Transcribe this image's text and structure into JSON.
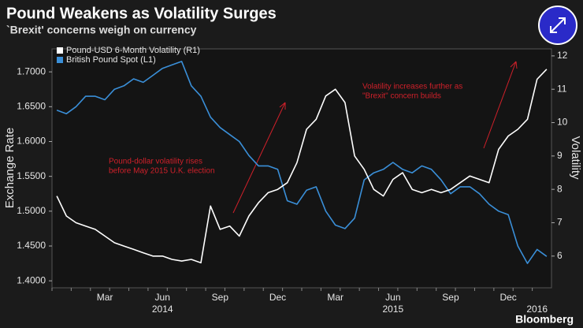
{
  "chart_data": {
    "type": "line",
    "title": "Pound Weakens as Volatility Surges",
    "subtitle": "`Brexit' concerns weigh on currency",
    "ylabel": "Exchange Rate",
    "y2label": "Volatility",
    "source": "Bloomberg",
    "categories": [
      null,
      null,
      null,
      null,
      null,
      "Mar",
      null,
      null,
      null,
      null,
      null,
      "Jun",
      null,
      null,
      null,
      null,
      null,
      "Sep",
      null,
      null,
      null,
      null,
      null,
      "Dec",
      null,
      null,
      null,
      null,
      null,
      "Mar",
      null,
      null,
      null,
      null,
      null,
      "Jun",
      null,
      null,
      null,
      null,
      null,
      "Sep",
      null,
      null,
      null,
      null,
      null,
      "Dec",
      null,
      null,
      null,
      null
    ],
    "x_group_labels": [
      null,
      null,
      null,
      null,
      null,
      null,
      null,
      null,
      null,
      null,
      null,
      "2014",
      null,
      null,
      null,
      null,
      null,
      null,
      null,
      null,
      null,
      null,
      null,
      null,
      null,
      null,
      null,
      null,
      null,
      null,
      null,
      null,
      null,
      null,
      null,
      "2015",
      null,
      null,
      null,
      null,
      null,
      null,
      null,
      null,
      null,
      null,
      null,
      null,
      null,
      null,
      "2016",
      null
    ],
    "series": [
      {
        "name": "Pound-USD 6-Month Volatility (R1)",
        "color": "#ffffff",
        "axis": "y2",
        "values": [
          7.8,
          7.2,
          7.0,
          6.9,
          6.8,
          6.6,
          6.4,
          6.3,
          6.2,
          6.1,
          6.0,
          6.0,
          5.9,
          5.85,
          5.9,
          5.8,
          7.5,
          6.8,
          6.9,
          6.6,
          7.2,
          7.6,
          7.9,
          8.0,
          8.2,
          8.8,
          9.8,
          10.1,
          10.8,
          11.0,
          10.6,
          9.0,
          8.6,
          8.0,
          7.8,
          8.3,
          8.5,
          8.0,
          7.9,
          8.0,
          7.9,
          8.0,
          8.2,
          8.4,
          8.3,
          8.2,
          9.2,
          9.6,
          9.8,
          10.1,
          11.3,
          11.6
        ]
      },
      {
        "name": "British Pound Spot (L1)",
        "color": "#3a8fd8",
        "values": [
          1.645,
          1.64,
          1.65,
          1.665,
          1.665,
          1.66,
          1.675,
          1.68,
          1.69,
          1.685,
          1.695,
          1.705,
          1.71,
          1.715,
          1.68,
          1.665,
          1.635,
          1.62,
          1.61,
          1.6,
          1.58,
          1.565,
          1.565,
          1.56,
          1.515,
          1.51,
          1.53,
          1.535,
          1.5,
          1.48,
          1.475,
          1.49,
          1.545,
          1.555,
          1.56,
          1.57,
          1.56,
          1.555,
          1.565,
          1.56,
          1.545,
          1.525,
          1.535,
          1.535,
          1.525,
          1.51,
          1.5,
          1.495,
          1.45,
          1.425,
          1.445,
          1.435
        ]
      }
    ],
    "ylim": [
      1.39,
      1.733
    ],
    "yticks": [
      {
        "value": 1.4,
        "label": "1.4000"
      },
      {
        "value": 1.45,
        "label": "1.4500"
      },
      {
        "value": 1.5,
        "label": "1.5000"
      },
      {
        "value": 1.55,
        "label": "1.5500"
      },
      {
        "value": 1.6,
        "label": "1.6000"
      },
      {
        "value": 1.65,
        "label": "1.6500"
      },
      {
        "value": 1.7,
        "label": "1.7000"
      }
    ],
    "y2lim": [
      5.05,
      12.21
    ],
    "y2ticks": [
      6,
      7,
      8,
      9,
      10,
      11,
      12
    ],
    "annotations": [
      [
        "Pound-dollar volatility rises",
        "before May 2015 U.K. election"
      ],
      [
        "Volatility increases further as",
        "\"Brexit\" concern builds"
      ]
    ],
    "annotation_color": "#d0202a"
  }
}
